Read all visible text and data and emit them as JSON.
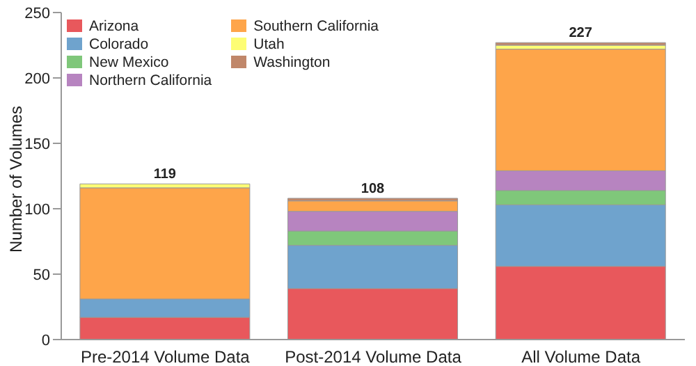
{
  "chart_data": {
    "type": "bar",
    "stacked": true,
    "ylabel": "Number of Volumes",
    "categories": [
      "Pre-2014 Volume Data",
      "Post-2014 Volume Data",
      "All Volume Data"
    ],
    "series": [
      {
        "name": "Arizona",
        "color": "#e8585c",
        "values": [
          17,
          39,
          56
        ]
      },
      {
        "name": "Colorado",
        "color": "#6fa3cd",
        "values": [
          14,
          33,
          47
        ]
      },
      {
        "name": "New Mexico",
        "color": "#7fc77a",
        "values": [
          0,
          11,
          11
        ]
      },
      {
        "name": "Northern California",
        "color": "#b784c0",
        "values": [
          0,
          15,
          15
        ]
      },
      {
        "name": "Southern California",
        "color": "#fea54a",
        "values": [
          85,
          8,
          93
        ]
      },
      {
        "name": "Utah",
        "color": "#fdfd74",
        "values": [
          3,
          0,
          3
        ]
      },
      {
        "name": "Washington",
        "color": "#c0876a",
        "values": [
          0,
          2,
          2
        ]
      }
    ],
    "totals": [
      "119",
      "108",
      "227"
    ],
    "ylim": [
      0,
      250
    ],
    "yticks": [
      0,
      50,
      100,
      150,
      200,
      250
    ],
    "legend": "top left"
  }
}
